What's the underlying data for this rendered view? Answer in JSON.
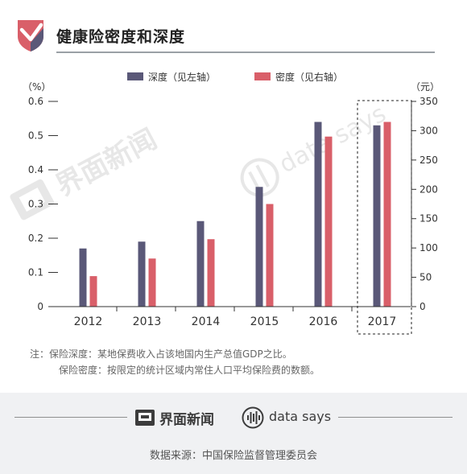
{
  "header": {
    "title": "健康险密度和深度",
    "logo_icon": "shield-check-icon"
  },
  "chart_data": {
    "type": "bar",
    "categories": [
      "2012",
      "2013",
      "2014",
      "2015",
      "2016",
      "2017"
    ],
    "series": [
      {
        "name": "深度（见左轴）",
        "axis": "left",
        "color": "#5a5878",
        "values": [
          0.17,
          0.19,
          0.25,
          0.35,
          0.54,
          0.53
        ]
      },
      {
        "name": "密度（见右轴）",
        "axis": "right",
        "color": "#d95f69",
        "values": [
          52,
          82,
          115,
          175,
          290,
          315
        ]
      }
    ],
    "left_axis": {
      "unit": "（%）",
      "ylim": [
        0,
        0.6
      ],
      "ticks": [
        "0",
        "0.1",
        "0.2",
        "0.3",
        "0.4",
        "0.5",
        "0.6"
      ]
    },
    "right_axis": {
      "unit": "（元）",
      "ylim": [
        0,
        350
      ],
      "ticks": [
        "0",
        "50",
        "100",
        "150",
        "200",
        "250",
        "300",
        "350"
      ]
    },
    "highlight": "2017",
    "legend_position": "top-center",
    "grid": false
  },
  "notes": {
    "line1": "注：保险深度：某地保费收入占该地国内生产总值GDP之比。",
    "line2": "保险密度：按限定的统计区域内常住人口平均保险费的数额。"
  },
  "watermark": {
    "left": "界面新闻",
    "right": "data says"
  },
  "footer": {
    "brand_left": "界面新闻",
    "brand_right": "data says",
    "brand_left_icon": "jiemian-logo-icon",
    "brand_right_icon": "datasays-logo-icon",
    "source": "数据来源：中国保险监督管理委员会"
  }
}
